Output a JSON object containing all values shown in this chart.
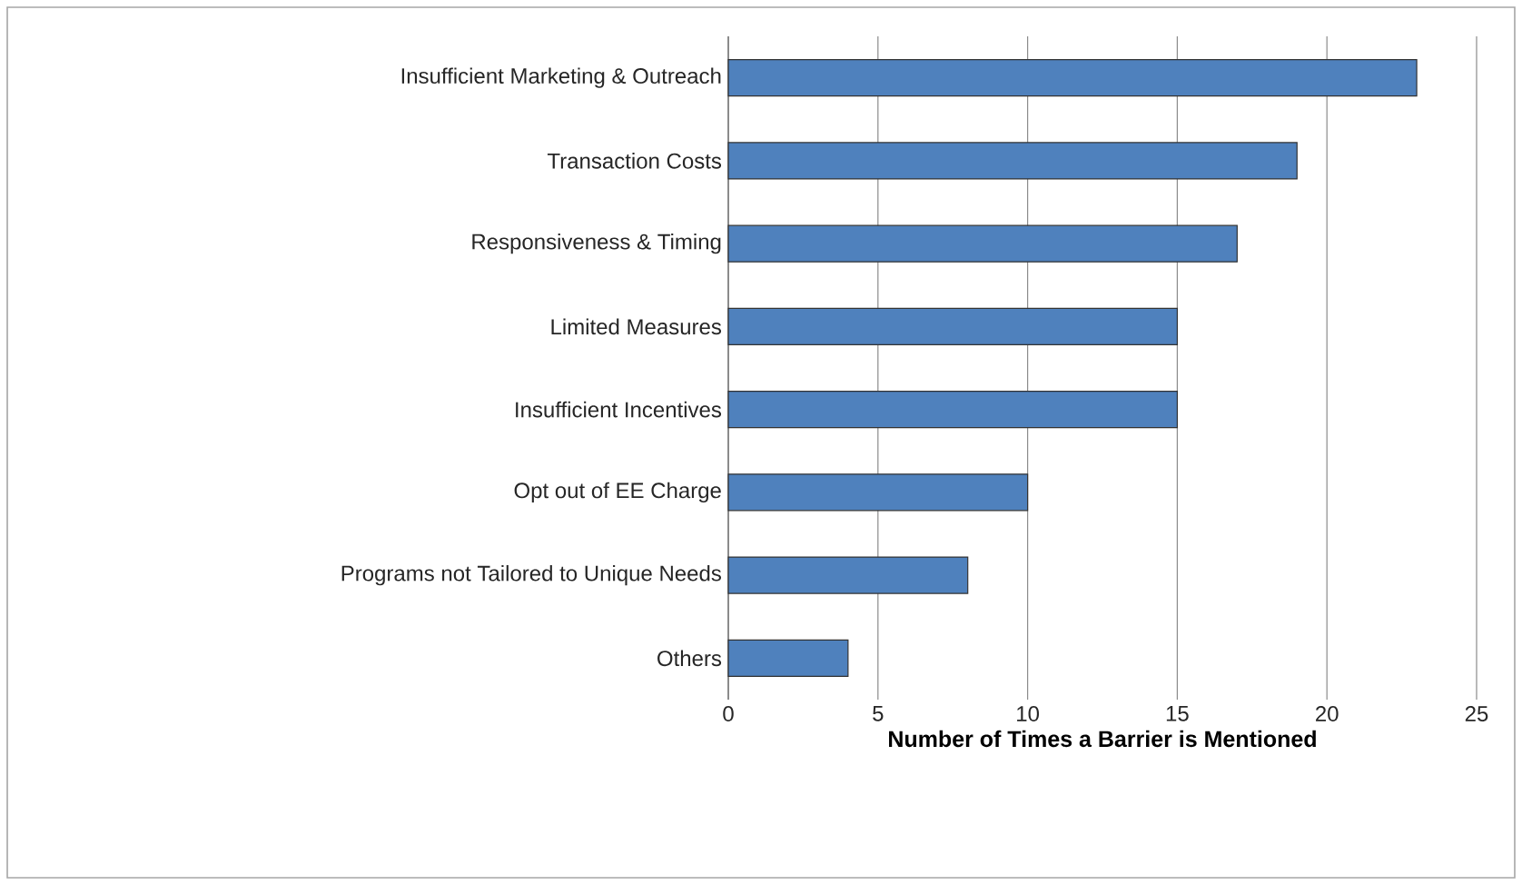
{
  "chart_data": {
    "type": "bar",
    "orientation": "horizontal",
    "xlabel": "Number of Times a Barrier is Mentioned",
    "categories": [
      "Insufficient Marketing & Outreach",
      "Transaction Costs",
      "Responsiveness & Timing",
      "Limited Measures",
      "Insufficient Incentives",
      "Opt out of EE Charge",
      "Programs not Tailored to Unique Needs",
      "Others"
    ],
    "values": [
      23,
      19,
      17,
      15,
      15,
      10,
      8,
      4
    ],
    "color": "#4f81bd",
    "xlim": [
      0,
      25
    ],
    "xticks": [
      0,
      5,
      10,
      15,
      20,
      25
    ],
    "grid": "x"
  }
}
